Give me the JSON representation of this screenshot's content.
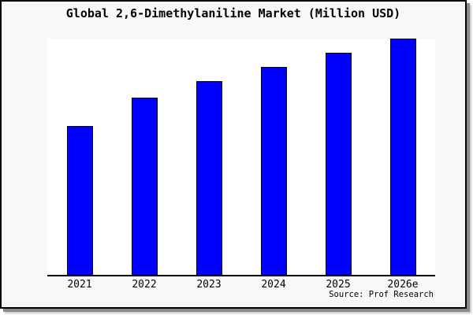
{
  "title": "Global 2,6-Dimethylaniline Market (Million USD)",
  "source": "Source: Prof Research",
  "colors": {
    "bar_fill": "#0000ff",
    "bar_border": "#000000",
    "frame_background": "#f8f8f8",
    "plot_background": "#ffffff",
    "axis": "#000000",
    "frame_border": "#000000",
    "shadow": "#8b8b8b"
  },
  "chart_data": {
    "type": "bar",
    "title": "Global 2,6-Dimethylaniline Market (Million USD)",
    "categories": [
      "2021",
      "2022",
      "2023",
      "2024",
      "2025",
      "2026e"
    ],
    "values": [
      63,
      75,
      82,
      88,
      94,
      100
    ],
    "note": "y-axis has no tick labels or gridlines in the image; values are bar heights estimated as percent of the tallest (2026e) bar",
    "xlabel": "",
    "ylabel": "",
    "ylim": [
      0,
      100
    ],
    "grid": false,
    "legend": false,
    "bar_color": "#0000ff",
    "source": "Source: Prof Research"
  }
}
